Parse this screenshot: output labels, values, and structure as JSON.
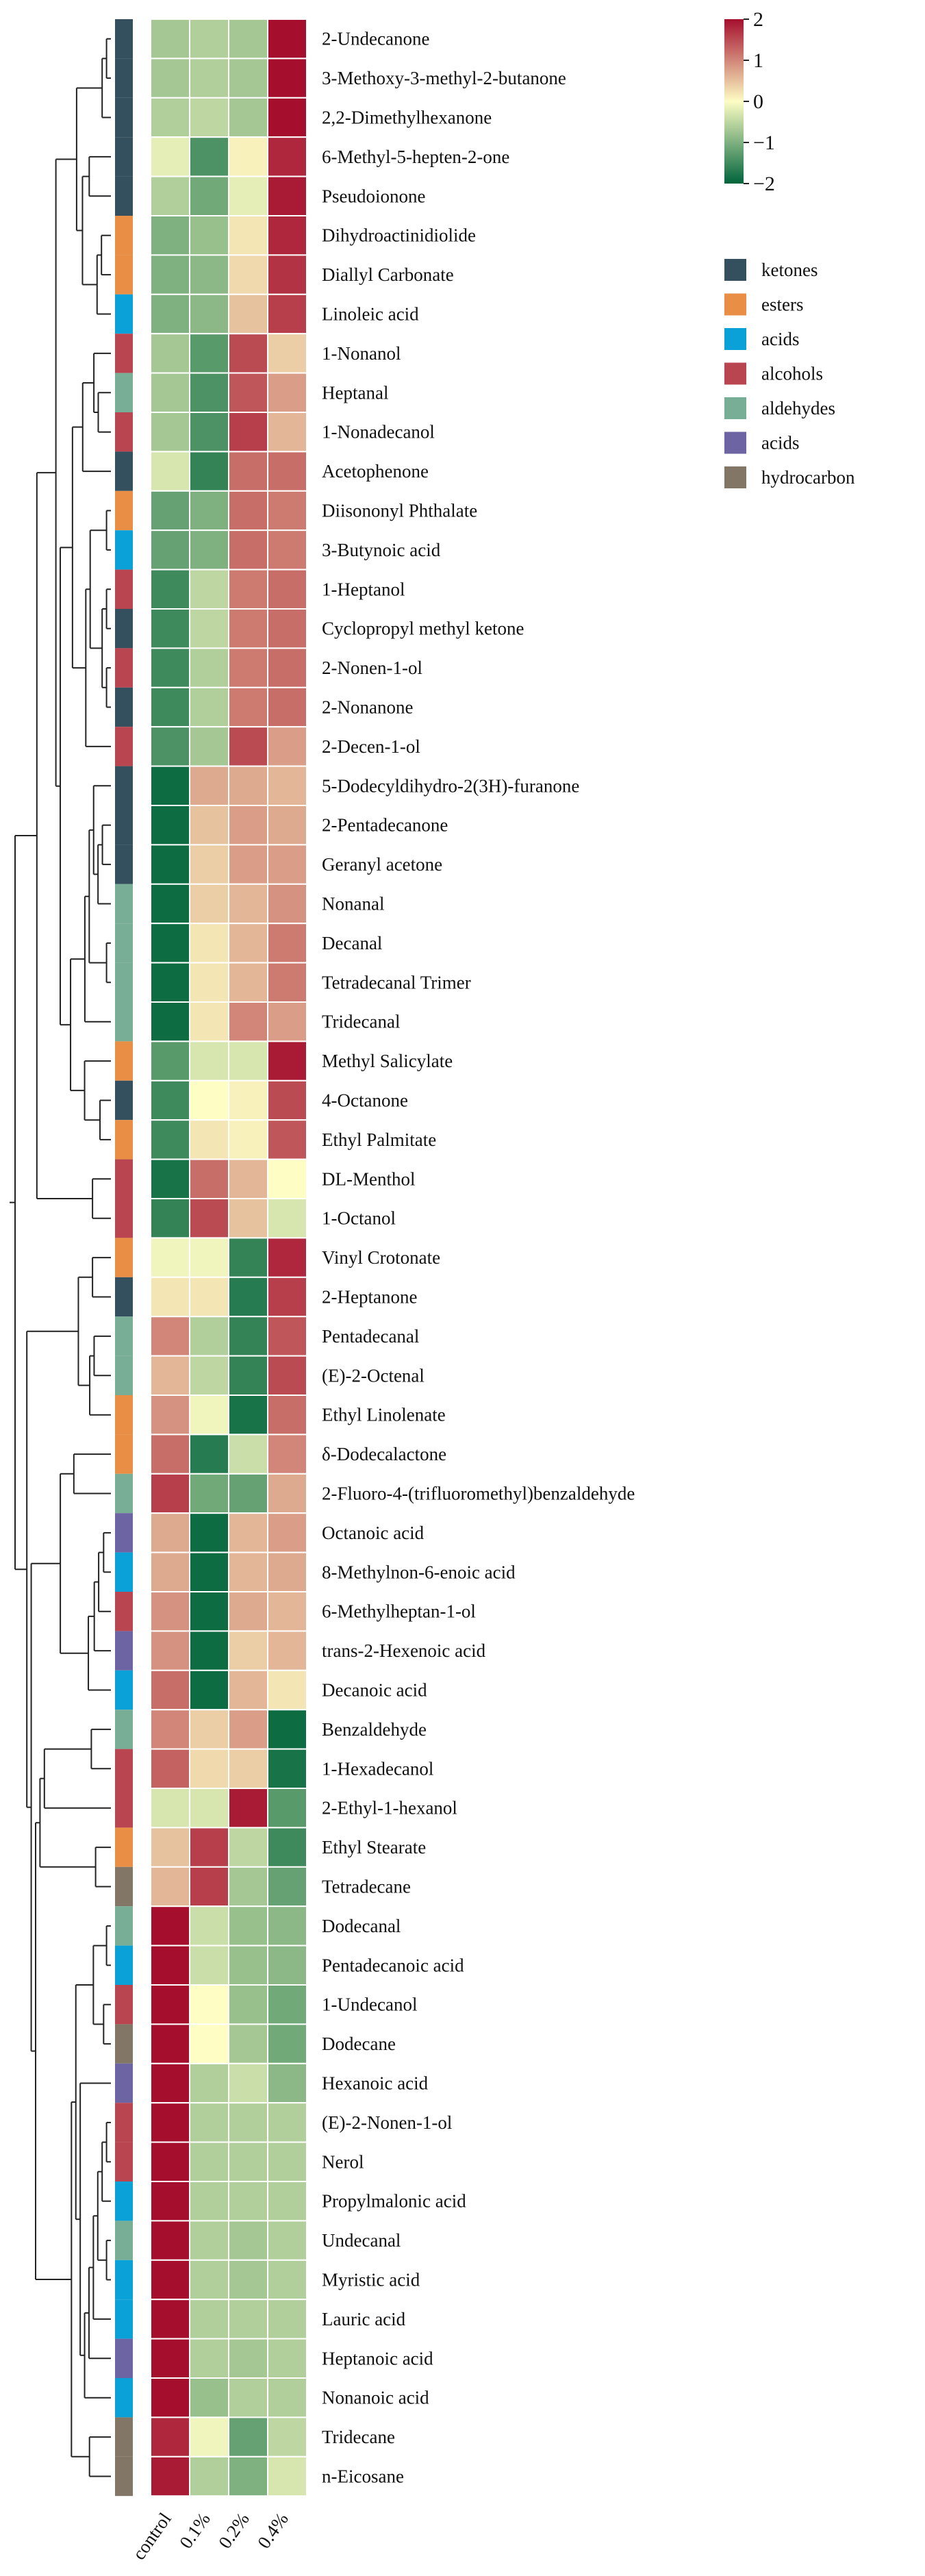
{
  "chart_data": {
    "type": "heatmap",
    "columns": [
      "control",
      "0.1%",
      "0.2%",
      "0.4%"
    ],
    "rows": [
      {
        "name": "2-Undecanone",
        "class": "ketones",
        "values": [
          -0.7,
          -0.6,
          -0.7,
          2.0
        ]
      },
      {
        "name": "3-Methoxy-3-methyl-2-butanone",
        "class": "ketones",
        "values": [
          -0.7,
          -0.6,
          -0.7,
          2.0
        ]
      },
      {
        "name": "2,2-Dimethylhexanone",
        "class": "ketones",
        "values": [
          -0.6,
          -0.5,
          -0.7,
          2.0
        ]
      },
      {
        "name": "6-Methyl-5-hepten-2-one",
        "class": "ketones",
        "values": [
          -0.2,
          -1.4,
          0.1,
          1.8
        ]
      },
      {
        "name": "Pseudoionone",
        "class": "ketones",
        "values": [
          -0.6,
          -1.1,
          -0.2,
          1.9
        ]
      },
      {
        "name": "Dihydroactinidiolide",
        "class": "esters",
        "values": [
          -1.0,
          -0.8,
          0.2,
          1.8
        ]
      },
      {
        "name": "Diallyl Carbonate",
        "class": "esters",
        "values": [
          -1.0,
          -0.9,
          0.3,
          1.7
        ]
      },
      {
        "name": "Linoleic acid",
        "class": "acids",
        "values": [
          -1.0,
          -0.9,
          0.5,
          1.6
        ]
      },
      {
        "name": "1-Nonanol",
        "class": "alcohols",
        "values": [
          -0.7,
          -1.3,
          1.5,
          0.4
        ]
      },
      {
        "name": "Heptanal",
        "class": "aldehydes",
        "values": [
          -0.7,
          -1.4,
          1.4,
          0.8
        ]
      },
      {
        "name": "1-Nonadecanol",
        "class": "alcohols",
        "values": [
          -0.7,
          -1.4,
          1.6,
          0.6
        ]
      },
      {
        "name": "Acetophenone",
        "class": "ketones",
        "values": [
          -0.3,
          -1.6,
          1.2,
          1.2
        ]
      },
      {
        "name": "Diisononyl Phthalate",
        "class": "esters",
        "values": [
          -1.2,
          -1.0,
          1.2,
          1.1
        ]
      },
      {
        "name": "3-Butynoic acid",
        "class": "acids",
        "values": [
          -1.2,
          -1.0,
          1.2,
          1.1
        ]
      },
      {
        "name": "1-Heptanol",
        "class": "alcohols",
        "values": [
          -1.5,
          -0.5,
          1.1,
          1.2
        ]
      },
      {
        "name": "Cyclopropyl methyl ketone",
        "class": "ketones",
        "values": [
          -1.5,
          -0.5,
          1.1,
          1.2
        ]
      },
      {
        "name": "2-Nonen-1-ol",
        "class": "alcohols",
        "values": [
          -1.5,
          -0.6,
          1.1,
          1.2
        ]
      },
      {
        "name": "2-Nonanone",
        "class": "ketones",
        "values": [
          -1.5,
          -0.6,
          1.1,
          1.2
        ]
      },
      {
        "name": "2-Decen-1-ol",
        "class": "alcohols",
        "values": [
          -1.4,
          -0.7,
          1.5,
          0.8
        ]
      },
      {
        "name": "5-Dodecyldihydro-2(3H)-furanone",
        "class": "ketones",
        "values": [
          -1.9,
          0.7,
          0.7,
          0.6
        ]
      },
      {
        "name": "2-Pentadecanone",
        "class": "ketones",
        "values": [
          -1.9,
          0.5,
          0.8,
          0.7
        ]
      },
      {
        "name": "Geranyl acetone",
        "class": "ketones",
        "values": [
          -1.9,
          0.4,
          0.8,
          0.8
        ]
      },
      {
        "name": "Nonanal",
        "class": "aldehydes",
        "values": [
          -1.9,
          0.4,
          0.6,
          0.9
        ]
      },
      {
        "name": "Decanal",
        "class": "aldehydes",
        "values": [
          -1.9,
          0.2,
          0.6,
          1.1
        ]
      },
      {
        "name": "Tetradecanal Trimer",
        "class": "aldehydes",
        "values": [
          -1.9,
          0.2,
          0.6,
          1.1
        ]
      },
      {
        "name": "Tridecanal",
        "class": "aldehydes",
        "values": [
          -1.9,
          0.2,
          1.0,
          0.8
        ]
      },
      {
        "name": "Methyl Salicylate",
        "class": "esters",
        "values": [
          -1.3,
          -0.3,
          -0.3,
          1.9
        ]
      },
      {
        "name": "4-Octanone",
        "class": "ketones",
        "values": [
          -1.5,
          0.0,
          0.1,
          1.5
        ]
      },
      {
        "name": "Ethyl Palmitate",
        "class": "esters",
        "values": [
          -1.5,
          0.2,
          0.1,
          1.4
        ]
      },
      {
        "name": "DL-Menthol",
        "class": "alcohols",
        "values": [
          -1.8,
          1.2,
          0.6,
          0.0
        ]
      },
      {
        "name": "1-Octanol",
        "class": "alcohols",
        "values": [
          -1.6,
          1.5,
          0.5,
          -0.3
        ]
      },
      {
        "name": "Vinyl Crotonate",
        "class": "esters",
        "values": [
          -0.1,
          -0.1,
          -1.6,
          1.8
        ]
      },
      {
        "name": "2-Heptanone",
        "class": "ketones",
        "values": [
          0.2,
          0.2,
          -1.7,
          1.6
        ]
      },
      {
        "name": "Pentadecanal",
        "class": "aldehydes",
        "values": [
          1.0,
          -0.6,
          -1.6,
          1.4
        ]
      },
      {
        "name": "(E)-2-Octenal",
        "class": "aldehydes",
        "values": [
          0.6,
          -0.5,
          -1.6,
          1.5
        ]
      },
      {
        "name": "Ethyl Linolenate",
        "class": "esters",
        "values": [
          0.9,
          -0.1,
          -1.8,
          1.2
        ]
      },
      {
        "name": "δ-Dodecalactone",
        "class": "esters",
        "values": [
          1.2,
          -1.7,
          -0.4,
          1.0
        ]
      },
      {
        "name": "2-Fluoro-4-(trifluoromethyl)benzaldehyde",
        "class": "aldehydes",
        "values": [
          1.6,
          -1.1,
          -1.2,
          0.7
        ]
      },
      {
        "name": "Octanoic acid",
        "class": "acids2",
        "values": [
          0.7,
          -1.9,
          0.6,
          0.8
        ]
      },
      {
        "name": "8-Methylnon-6-enoic acid",
        "class": "acids",
        "values": [
          0.7,
          -1.9,
          0.6,
          0.7
        ]
      },
      {
        "name": "6-Methylheptan-1-ol",
        "class": "alcohols",
        "values": [
          0.9,
          -1.9,
          0.7,
          0.6
        ]
      },
      {
        "name": "trans-2-Hexenoic acid",
        "class": "acids2",
        "values": [
          0.9,
          -1.9,
          0.4,
          0.6
        ]
      },
      {
        "name": "Decanoic acid",
        "class": "acids",
        "values": [
          1.2,
          -1.9,
          0.6,
          0.2
        ]
      },
      {
        "name": "Benzaldehyde",
        "class": "aldehydes",
        "values": [
          1.0,
          0.4,
          0.8,
          -1.9
        ]
      },
      {
        "name": "1-Hexadecanol",
        "class": "alcohols",
        "values": [
          1.3,
          0.3,
          0.4,
          -1.8
        ]
      },
      {
        "name": "2-Ethyl-1-hexanol",
        "class": "alcohols",
        "values": [
          -0.3,
          -0.3,
          1.9,
          -1.3
        ]
      },
      {
        "name": "Ethyl Stearate",
        "class": "esters",
        "values": [
          0.5,
          1.6,
          -0.5,
          -1.5
        ]
      },
      {
        "name": "Tetradecane",
        "class": "hydrocarbon",
        "values": [
          0.6,
          1.6,
          -0.7,
          -1.2
        ]
      },
      {
        "name": "Dodecanal",
        "class": "aldehydes",
        "values": [
          2.0,
          -0.4,
          -0.8,
          -0.9
        ]
      },
      {
        "name": "Pentadecanoic acid",
        "class": "acids",
        "values": [
          2.0,
          -0.4,
          -0.8,
          -0.9
        ]
      },
      {
        "name": "1-Undecanol",
        "class": "alcohols",
        "values": [
          2.0,
          0.0,
          -0.8,
          -1.1
        ]
      },
      {
        "name": "Dodecane",
        "class": "hydrocarbon",
        "values": [
          2.0,
          0.0,
          -0.7,
          -1.1
        ]
      },
      {
        "name": "Hexanoic acid",
        "class": "acids2",
        "values": [
          2.0,
          -0.6,
          -0.4,
          -0.9
        ]
      },
      {
        "name": "(E)-2-Nonen-1-ol",
        "class": "alcohols",
        "values": [
          2.0,
          -0.6,
          -0.6,
          -0.6
        ]
      },
      {
        "name": "Nerol",
        "class": "alcohols",
        "values": [
          2.0,
          -0.6,
          -0.6,
          -0.6
        ]
      },
      {
        "name": "Propylmalonic acid",
        "class": "acids",
        "values": [
          2.0,
          -0.6,
          -0.6,
          -0.6
        ]
      },
      {
        "name": "Undecanal",
        "class": "aldehydes",
        "values": [
          2.0,
          -0.6,
          -0.7,
          -0.6
        ]
      },
      {
        "name": "Myristic acid",
        "class": "acids",
        "values": [
          2.0,
          -0.6,
          -0.7,
          -0.6
        ]
      },
      {
        "name": "Lauric acid",
        "class": "acids",
        "values": [
          2.0,
          -0.6,
          -0.6,
          -0.6
        ]
      },
      {
        "name": "Heptanoic acid",
        "class": "acids2",
        "values": [
          2.0,
          -0.6,
          -0.7,
          -0.6
        ]
      },
      {
        "name": "Nonanoic acid",
        "class": "acids",
        "values": [
          2.0,
          -0.8,
          -0.6,
          -0.6
        ]
      },
      {
        "name": "Tridecane",
        "class": "hydrocarbon",
        "values": [
          1.8,
          -0.1,
          -1.2,
          -0.5
        ]
      },
      {
        "name": "n-Eicosane",
        "class": "hydrocarbon",
        "values": [
          1.9,
          -0.6,
          -1.0,
          -0.3
        ]
      }
    ],
    "scale": {
      "min": -2,
      "max": 2,
      "ticks": [
        "2",
        "1",
        "0",
        "−1",
        "−2"
      ]
    },
    "colors": {
      "high": "#a50f2d",
      "mid": "#fdfdc4",
      "low": "#00643b",
      "grid": "#ffffff",
      "dendrogram": "#222222"
    },
    "legend": {
      "placement": "right",
      "items": [
        {
          "key": "ketones",
          "label": "ketones",
          "color": "#34505e"
        },
        {
          "key": "esters",
          "label": "esters",
          "color": "#e88e45"
        },
        {
          "key": "acids",
          "label": "acids",
          "color": "#0aa1d8"
        },
        {
          "key": "alcohols",
          "label": "alcohols",
          "color": "#b84550"
        },
        {
          "key": "aldehydes",
          "label": "aldehydes",
          "color": "#79ae96"
        },
        {
          "key": "acids2",
          "label": "acids",
          "color": "#6d64a3"
        },
        {
          "key": "hydrocarbon",
          "label": "hydrocarbon",
          "color": "#827766"
        }
      ]
    }
  }
}
